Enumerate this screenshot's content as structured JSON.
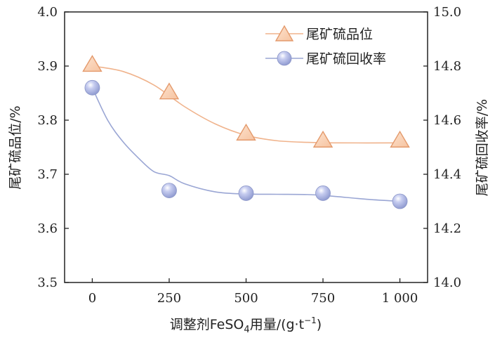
{
  "chart_data": {
    "type": "line",
    "x": [
      0,
      250,
      500,
      750,
      1000
    ],
    "x_tick_labels": [
      "0",
      "250",
      "500",
      "750",
      "1 000"
    ],
    "xlim": [
      -90,
      1090
    ],
    "xlabel_main": "调整剂FeSO",
    "xlabel_sub": "4",
    "xlabel_tail": "用量/(g·t",
    "xlabel_sup": "−1",
    "xlabel_close": ")",
    "ylabel_left": "尾矿硫品位/%",
    "ylabel_right": "尾矿硫回收率/%",
    "ylim_left": [
      3.5,
      4.0
    ],
    "ylim_right": [
      14.0,
      15.0
    ],
    "y_ticks_left": [
      "3.5",
      "3.6",
      "3.7",
      "3.8",
      "3.9",
      "4.0"
    ],
    "y_ticks_right": [
      "14.0",
      "14.2",
      "14.4",
      "14.6",
      "14.8",
      "15.0"
    ],
    "legend_position": "top-right",
    "series": [
      {
        "name": "尾矿硫品位",
        "axis": "left",
        "marker": "triangle",
        "color": "#f0b38c",
        "values": [
          3.902,
          3.851,
          3.775,
          3.762,
          3.762
        ],
        "fit_curve": [
          [
            0,
            3.9
          ],
          [
            100,
            3.89
          ],
          [
            200,
            3.865
          ],
          [
            300,
            3.825
          ],
          [
            400,
            3.793
          ],
          [
            500,
            3.772
          ],
          [
            600,
            3.762
          ],
          [
            700,
            3.759
          ],
          [
            800,
            3.758
          ],
          [
            1000,
            3.758
          ]
        ]
      },
      {
        "name": "尾矿硫回收率",
        "axis": "right",
        "marker": "sphere",
        "color": "#9aa6d4",
        "values": [
          14.72,
          14.34,
          14.33,
          14.33,
          14.3
        ],
        "fit_curve": [
          [
            0,
            14.72
          ],
          [
            50,
            14.6
          ],
          [
            100,
            14.52
          ],
          [
            150,
            14.46
          ],
          [
            200,
            14.41
          ],
          [
            250,
            14.395
          ],
          [
            300,
            14.365
          ],
          [
            400,
            14.335
          ],
          [
            500,
            14.327
          ],
          [
            600,
            14.326
          ],
          [
            700,
            14.325
          ],
          [
            750,
            14.322
          ],
          [
            800,
            14.317
          ],
          [
            900,
            14.307
          ],
          [
            1000,
            14.3
          ]
        ]
      }
    ]
  }
}
